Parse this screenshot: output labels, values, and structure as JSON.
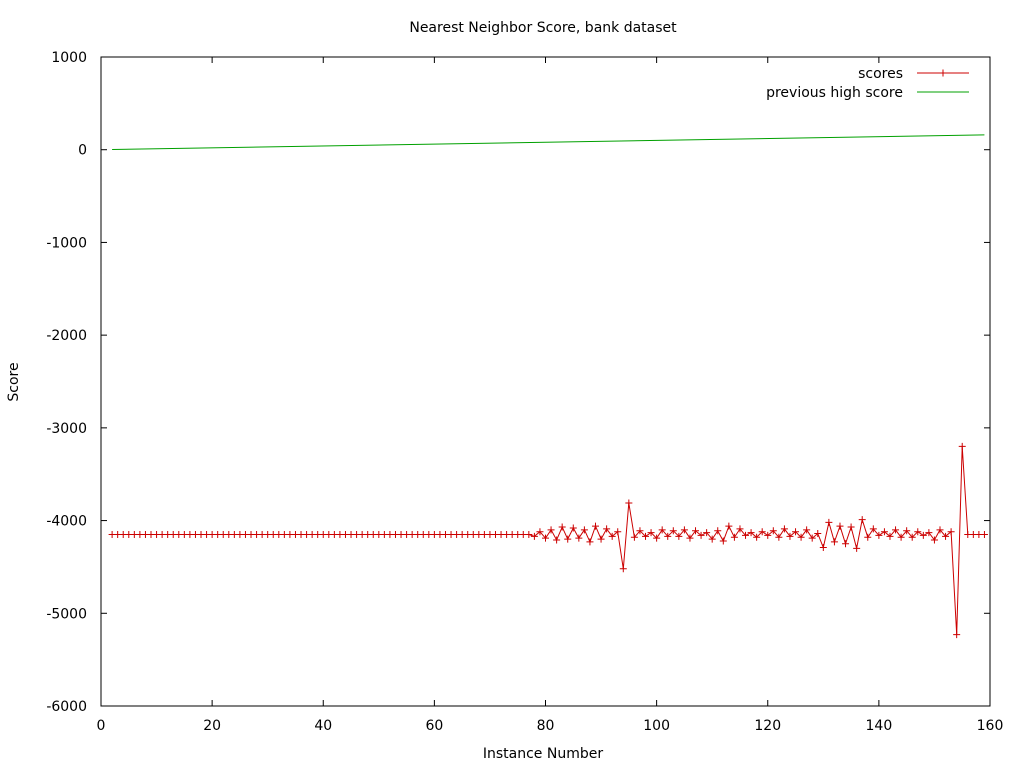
{
  "chart_data": {
    "type": "line",
    "title": "Nearest Neighbor Score, bank dataset",
    "xlabel": "Instance Number",
    "ylabel": "Score",
    "xlim": [
      0,
      160
    ],
    "ylim": [
      -6000,
      1000
    ],
    "xticks": [
      0,
      20,
      40,
      60,
      80,
      100,
      120,
      140,
      160
    ],
    "yticks": [
      1000,
      0,
      -1000,
      -2000,
      -3000,
      -4000,
      -5000,
      -6000
    ],
    "grid": false,
    "legend_position": "top-right",
    "series": [
      {
        "name": "scores",
        "color": "#cc0000",
        "marker": "plus",
        "x": [
          2,
          3,
          4,
          5,
          6,
          7,
          8,
          9,
          10,
          11,
          12,
          13,
          14,
          15,
          16,
          17,
          18,
          19,
          20,
          21,
          22,
          23,
          24,
          25,
          26,
          27,
          28,
          29,
          30,
          31,
          32,
          33,
          34,
          35,
          36,
          37,
          38,
          39,
          40,
          41,
          42,
          43,
          44,
          45,
          46,
          47,
          48,
          49,
          50,
          51,
          52,
          53,
          54,
          55,
          56,
          57,
          58,
          59,
          60,
          61,
          62,
          63,
          64,
          65,
          66,
          67,
          68,
          69,
          70,
          71,
          72,
          73,
          74,
          75,
          76,
          77,
          78,
          79,
          80,
          81,
          82,
          83,
          84,
          85,
          86,
          87,
          88,
          89,
          90,
          91,
          92,
          93,
          94,
          95,
          96,
          97,
          98,
          99,
          100,
          101,
          102,
          103,
          104,
          105,
          106,
          107,
          108,
          109,
          110,
          111,
          112,
          113,
          114,
          115,
          116,
          117,
          118,
          119,
          120,
          121,
          122,
          123,
          124,
          125,
          126,
          127,
          128,
          129,
          130,
          131,
          132,
          133,
          134,
          135,
          136,
          137,
          138,
          139,
          140,
          141,
          142,
          143,
          144,
          145,
          146,
          147,
          148,
          149,
          150,
          151,
          152,
          153,
          154,
          155,
          156,
          157,
          158,
          159
        ],
        "y": [
          -4150,
          -4150,
          -4150,
          -4150,
          -4150,
          -4150,
          -4150,
          -4150,
          -4150,
          -4150,
          -4150,
          -4150,
          -4150,
          -4150,
          -4150,
          -4150,
          -4150,
          -4150,
          -4150,
          -4150,
          -4150,
          -4150,
          -4150,
          -4150,
          -4150,
          -4150,
          -4150,
          -4150,
          -4150,
          -4150,
          -4150,
          -4150,
          -4150,
          -4150,
          -4150,
          -4150,
          -4150,
          -4150,
          -4150,
          -4150,
          -4150,
          -4150,
          -4150,
          -4150,
          -4150,
          -4150,
          -4150,
          -4150,
          -4150,
          -4150,
          -4150,
          -4150,
          -4150,
          -4150,
          -4150,
          -4150,
          -4150,
          -4150,
          -4150,
          -4150,
          -4150,
          -4150,
          -4150,
          -4150,
          -4150,
          -4150,
          -4150,
          -4150,
          -4150,
          -4150,
          -4150,
          -4150,
          -4150,
          -4150,
          -4150,
          -4150,
          -4170,
          -4120,
          -4190,
          -4100,
          -4210,
          -4070,
          -4200,
          -4080,
          -4190,
          -4100,
          -4230,
          -4060,
          -4200,
          -4090,
          -4170,
          -4120,
          -4520,
          -3810,
          -4180,
          -4110,
          -4170,
          -4130,
          -4190,
          -4100,
          -4170,
          -4110,
          -4170,
          -4100,
          -4190,
          -4110,
          -4160,
          -4130,
          -4200,
          -4110,
          -4220,
          -4060,
          -4180,
          -4090,
          -4160,
          -4130,
          -4180,
          -4120,
          -4160,
          -4110,
          -4180,
          -4090,
          -4170,
          -4120,
          -4180,
          -4100,
          -4190,
          -4140,
          -4290,
          -4020,
          -4230,
          -4060,
          -4250,
          -4070,
          -4300,
          -3990,
          -4180,
          -4090,
          -4160,
          -4120,
          -4170,
          -4100,
          -4180,
          -4110,
          -4180,
          -4120,
          -4160,
          -4130,
          -4210,
          -4100,
          -4170,
          -4120,
          -5230,
          -3200,
          -4150,
          -4150,
          -4150,
          -4150
        ]
      },
      {
        "name": "previous high score",
        "color": "#00a000",
        "marker": "none",
        "x": [
          2,
          159
        ],
        "y": [
          2,
          160
        ]
      }
    ]
  }
}
